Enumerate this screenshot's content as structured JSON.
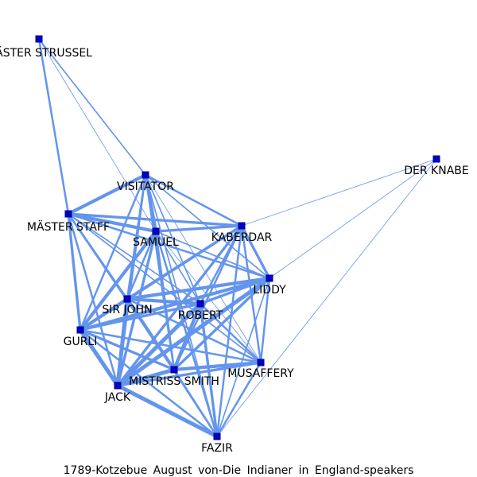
{
  "caption": "1789-Kotzebue August von-Die Indianer in England-speakers",
  "colors": {
    "edge": "#6495ed",
    "node_fill": "#0000cd",
    "node_stroke": "#000080",
    "text": "#000000"
  },
  "nodes": [
    {
      "id": "mstrussel",
      "label": "MÄSTER STRUSSEL"
    },
    {
      "id": "derknabe",
      "label": "DER KNABE"
    },
    {
      "id": "visitator",
      "label": "VISITATOR"
    },
    {
      "id": "mstaff",
      "label": "MÄSTER STAFF"
    },
    {
      "id": "kaberdar",
      "label": "KABERDAR"
    },
    {
      "id": "samuel",
      "label": "SAMUEL"
    },
    {
      "id": "liddy",
      "label": "LIDDY"
    },
    {
      "id": "sirjohn",
      "label": "SIR JOHN"
    },
    {
      "id": "robert",
      "label": "ROBERT"
    },
    {
      "id": "gurli",
      "label": "GURLI"
    },
    {
      "id": "musaffery",
      "label": "MUSAFFERY"
    },
    {
      "id": "mistriss",
      "label": "MISTRISS SMITH"
    },
    {
      "id": "jack",
      "label": "JACK"
    },
    {
      "id": "fazir",
      "label": "FAZIR"
    }
  ],
  "edges": [
    [
      "mstrussel",
      "visitator",
      2
    ],
    [
      "mstrussel",
      "mstaff",
      3
    ],
    [
      "mstrussel",
      "samuel",
      1
    ],
    [
      "derknabe",
      "kaberdar",
      1
    ],
    [
      "derknabe",
      "liddy",
      1
    ],
    [
      "derknabe",
      "fazir",
      1
    ],
    [
      "visitator",
      "mstaff",
      5
    ],
    [
      "visitator",
      "samuel",
      5
    ],
    [
      "visitator",
      "kaberdar",
      3
    ],
    [
      "visitator",
      "liddy",
      2
    ],
    [
      "visitator",
      "sirjohn",
      3
    ],
    [
      "visitator",
      "robert",
      2
    ],
    [
      "visitator",
      "gurli",
      3
    ],
    [
      "visitator",
      "mistriss",
      3
    ],
    [
      "visitator",
      "jack",
      3
    ],
    [
      "visitator",
      "musaffery",
      1
    ],
    [
      "visitator",
      "fazir",
      2
    ],
    [
      "mstaff",
      "samuel",
      5
    ],
    [
      "mstaff",
      "kaberdar",
      4
    ],
    [
      "mstaff",
      "liddy",
      3
    ],
    [
      "mstaff",
      "sirjohn",
      3
    ],
    [
      "mstaff",
      "robert",
      2
    ],
    [
      "mstaff",
      "gurli",
      4
    ],
    [
      "mstaff",
      "mistriss",
      3
    ],
    [
      "mstaff",
      "jack",
      3
    ],
    [
      "mstaff",
      "musaffery",
      2
    ],
    [
      "kaberdar",
      "samuel",
      4
    ],
    [
      "kaberdar",
      "liddy",
      4
    ],
    [
      "kaberdar",
      "sirjohn",
      4
    ],
    [
      "kaberdar",
      "robert",
      3
    ],
    [
      "kaberdar",
      "gurli",
      4
    ],
    [
      "kaberdar",
      "mistriss",
      3
    ],
    [
      "kaberdar",
      "jack",
      4
    ],
    [
      "kaberdar",
      "musaffery",
      3
    ],
    [
      "kaberdar",
      "fazir",
      3
    ],
    [
      "samuel",
      "liddy",
      2
    ],
    [
      "samuel",
      "sirjohn",
      3
    ],
    [
      "samuel",
      "robert",
      2
    ],
    [
      "samuel",
      "gurli",
      5
    ],
    [
      "samuel",
      "mistriss",
      3
    ],
    [
      "samuel",
      "jack",
      4
    ],
    [
      "samuel",
      "musaffery",
      1
    ],
    [
      "samuel",
      "fazir",
      3
    ],
    [
      "liddy",
      "sirjohn",
      5
    ],
    [
      "liddy",
      "robert",
      4
    ],
    [
      "liddy",
      "gurli",
      5
    ],
    [
      "liddy",
      "mistriss",
      4
    ],
    [
      "liddy",
      "jack",
      6
    ],
    [
      "liddy",
      "musaffery",
      3
    ],
    [
      "liddy",
      "fazir",
      2
    ],
    [
      "sirjohn",
      "robert",
      5
    ],
    [
      "sirjohn",
      "gurli",
      5
    ],
    [
      "sirjohn",
      "mistriss",
      5
    ],
    [
      "sirjohn",
      "jack",
      6
    ],
    [
      "sirjohn",
      "musaffery",
      3
    ],
    [
      "sirjohn",
      "fazir",
      3
    ],
    [
      "robert",
      "gurli",
      4
    ],
    [
      "robert",
      "mistriss",
      5
    ],
    [
      "robert",
      "jack",
      6
    ],
    [
      "robert",
      "musaffery",
      3
    ],
    [
      "robert",
      "fazir",
      4
    ],
    [
      "gurli",
      "jack",
      6
    ],
    [
      "gurli",
      "mistriss",
      4
    ],
    [
      "gurli",
      "musaffery",
      3
    ],
    [
      "gurli",
      "fazir",
      3
    ],
    [
      "mistriss",
      "jack",
      6
    ],
    [
      "mistriss",
      "musaffery",
      5
    ],
    [
      "mistriss",
      "fazir",
      3
    ],
    [
      "jack",
      "musaffery",
      4
    ],
    [
      "jack",
      "fazir",
      6
    ],
    [
      "musaffery",
      "fazir",
      3
    ]
  ]
}
